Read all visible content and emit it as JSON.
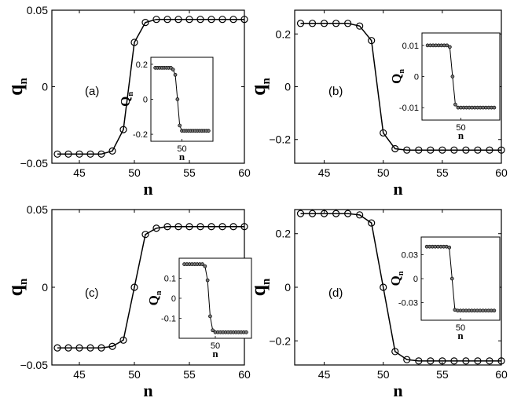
{
  "chart_data": [
    {
      "type": "line",
      "panel_label": "(a)",
      "xlabel": "n",
      "ylabel": "q",
      "ylabel_sub": "n",
      "xlim": [
        42.5,
        60
      ],
      "ylim": [
        -0.05,
        0.05
      ],
      "xticks": [
        45,
        50,
        55,
        60
      ],
      "yticks": [
        -0.05,
        0,
        0.05
      ],
      "ytick_labels": [
        "−0.05",
        "0",
        "0.05"
      ],
      "x": [
        43,
        44,
        45,
        46,
        47,
        48,
        49,
        50,
        51,
        52,
        53,
        54,
        55,
        56,
        57,
        58,
        59,
        60
      ],
      "series": [
        {
          "values": [
            -0.044,
            -0.044,
            -0.044,
            -0.044,
            -0.044,
            -0.042,
            -0.028,
            0.029,
            0.042,
            0.044,
            0.044,
            0.044,
            0.044,
            0.044,
            0.044,
            0.044,
            0.044,
            0.044
          ]
        }
      ],
      "inset": {
        "xlabel": "n",
        "ylabel": "Q",
        "ylabel_sub": "n",
        "xlim": [
          36,
          64
        ],
        "ylim": [
          -0.24,
          0.24
        ],
        "xticks": [
          50
        ],
        "yticks": [
          0.2,
          0,
          -0.2
        ],
        "ytick_labels": [
          "0.2",
          "0",
          "-0.2"
        ],
        "x": [
          38,
          39,
          40,
          41,
          42,
          43,
          44,
          45,
          46,
          47,
          48,
          49,
          50,
          51,
          52,
          53,
          54,
          55,
          56,
          57,
          58,
          59,
          60,
          61,
          62
        ],
        "values": [
          0.18,
          0.18,
          0.18,
          0.18,
          0.18,
          0.18,
          0.18,
          0.18,
          0.17,
          0.14,
          0.0,
          -0.15,
          -0.18,
          -0.18,
          -0.18,
          -0.18,
          -0.18,
          -0.18,
          -0.18,
          -0.18,
          -0.18,
          -0.18,
          -0.18,
          -0.18,
          -0.18
        ]
      }
    },
    {
      "type": "line",
      "panel_label": "(b)",
      "xlabel": "n",
      "ylabel": "q",
      "ylabel_sub": "n",
      "xlim": [
        42.5,
        60
      ],
      "ylim": [
        -0.29,
        0.29
      ],
      "xticks": [
        45,
        50,
        55,
        60
      ],
      "yticks": [
        -0.2,
        0,
        0.2
      ],
      "ytick_labels": [
        "−0.2",
        "0",
        "0.2"
      ],
      "x": [
        43,
        44,
        45,
        46,
        47,
        48,
        49,
        50,
        51,
        52,
        53,
        54,
        55,
        56,
        57,
        58,
        59,
        60
      ],
      "series": [
        {
          "values": [
            0.24,
            0.24,
            0.24,
            0.24,
            0.24,
            0.23,
            0.175,
            -0.175,
            -0.235,
            -0.24,
            -0.24,
            -0.24,
            -0.24,
            -0.24,
            -0.24,
            -0.24,
            -0.24,
            -0.24
          ]
        }
      ],
      "inset": {
        "xlabel": "n",
        "ylabel": "Q",
        "ylabel_sub": "n",
        "xlim": [
          36,
          64
        ],
        "ylim": [
          -0.014,
          0.014
        ],
        "xticks": [
          50
        ],
        "yticks": [
          0.01,
          0,
          -0.01
        ],
        "ytick_labels": [
          "0.01",
          "0",
          "-0.01"
        ],
        "x": [
          38,
          39,
          40,
          41,
          42,
          43,
          44,
          45,
          46,
          47,
          48,
          49,
          50,
          51,
          52,
          53,
          54,
          55,
          56,
          57,
          58,
          59,
          60,
          61,
          62
        ],
        "values": [
          0.01,
          0.01,
          0.01,
          0.01,
          0.01,
          0.01,
          0.01,
          0.01,
          0.0095,
          0.0,
          -0.009,
          -0.01,
          -0.01,
          -0.01,
          -0.01,
          -0.01,
          -0.01,
          -0.01,
          -0.01,
          -0.01,
          -0.01,
          -0.01,
          -0.01,
          -0.01,
          -0.01
        ]
      }
    },
    {
      "type": "line",
      "panel_label": "(c)",
      "xlabel": "n",
      "ylabel": "q",
      "ylabel_sub": "n",
      "xlim": [
        42.5,
        60
      ],
      "ylim": [
        -0.05,
        0.05
      ],
      "xticks": [
        45,
        50,
        55,
        60
      ],
      "yticks": [
        -0.05,
        0,
        0.05
      ],
      "ytick_labels": [
        "−0.05",
        "0",
        "0.05"
      ],
      "x": [
        43,
        44,
        45,
        46,
        47,
        48,
        49,
        50,
        51,
        52,
        53,
        54,
        55,
        56,
        57,
        58,
        59,
        60
      ],
      "series": [
        {
          "values": [
            -0.039,
            -0.039,
            -0.039,
            -0.039,
            -0.039,
            -0.038,
            -0.034,
            0.0,
            0.034,
            0.038,
            0.039,
            0.039,
            0.039,
            0.039,
            0.039,
            0.039,
            0.039,
            0.039
          ]
        }
      ],
      "inset": {
        "xlabel": "n",
        "ylabel": "Q",
        "ylabel_sub": "n",
        "xlim": [
          36,
          64
        ],
        "ylim": [
          -0.2,
          0.2
        ],
        "xticks": [
          50
        ],
        "yticks": [
          0.1,
          0,
          -0.1
        ],
        "ytick_labels": [
          "0.1",
          "0",
          "-0.1"
        ],
        "x": [
          38,
          39,
          40,
          41,
          42,
          43,
          44,
          45,
          46,
          47,
          48,
          49,
          50,
          51,
          52,
          53,
          54,
          55,
          56,
          57,
          58,
          59,
          60,
          61,
          62
        ],
        "values": [
          0.17,
          0.17,
          0.17,
          0.17,
          0.17,
          0.17,
          0.17,
          0.17,
          0.16,
          0.09,
          -0.09,
          -0.16,
          -0.17,
          -0.17,
          -0.17,
          -0.17,
          -0.17,
          -0.17,
          -0.17,
          -0.17,
          -0.17,
          -0.17,
          -0.17,
          -0.17,
          -0.17
        ]
      }
    },
    {
      "type": "line",
      "panel_label": "(d)",
      "xlabel": "n",
      "ylabel": "q",
      "ylabel_sub": "n",
      "xlim": [
        42.5,
        60
      ],
      "ylim": [
        -0.29,
        0.29
      ],
      "xticks": [
        45,
        50,
        55,
        60
      ],
      "yticks": [
        -0.2,
        0,
        0.2
      ],
      "ytick_labels": [
        "−0.2",
        "0",
        "0.2"
      ],
      "x": [
        43,
        44,
        45,
        46,
        47,
        48,
        49,
        50,
        51,
        52,
        53,
        54,
        55,
        56,
        57,
        58,
        59,
        60
      ],
      "series": [
        {
          "values": [
            0.275,
            0.275,
            0.275,
            0.275,
            0.275,
            0.27,
            0.24,
            0.0,
            -0.24,
            -0.27,
            -0.275,
            -0.275,
            -0.275,
            -0.275,
            -0.275,
            -0.275,
            -0.275,
            -0.275
          ]
        }
      ],
      "inset": {
        "xlabel": "n",
        "ylabel": "Q",
        "ylabel_sub": "n",
        "xlim": [
          36,
          64
        ],
        "ylim": [
          -0.052,
          0.052
        ],
        "xticks": [
          50
        ],
        "yticks": [
          0.03,
          0,
          -0.03
        ],
        "ytick_labels": [
          "0.03",
          "0",
          "-0.03"
        ],
        "x": [
          38,
          39,
          40,
          41,
          42,
          43,
          44,
          45,
          46,
          47,
          48,
          49,
          50,
          51,
          52,
          53,
          54,
          55,
          56,
          57,
          58,
          59,
          60,
          61,
          62
        ],
        "values": [
          0.04,
          0.04,
          0.04,
          0.04,
          0.04,
          0.04,
          0.04,
          0.04,
          0.039,
          0.0,
          -0.039,
          -0.04,
          -0.04,
          -0.04,
          -0.04,
          -0.04,
          -0.04,
          -0.04,
          -0.04,
          -0.04,
          -0.04,
          -0.04,
          -0.04,
          -0.04,
          -0.04
        ]
      }
    }
  ]
}
